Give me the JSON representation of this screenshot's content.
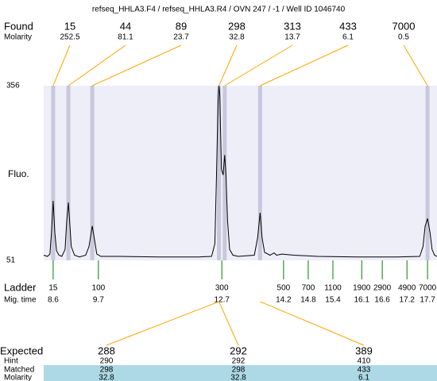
{
  "title": "refseq_HHLA3.F4 / refseq_HHLA3.R4 / OVN 247 / -1 / Well ID 1046740",
  "found": {
    "label": "Found",
    "molarity_label": "Molarity",
    "sizes": [
      15,
      44,
      89,
      298,
      313,
      433,
      7000
    ],
    "molarities": [
      252.5,
      81.1,
      23.7,
      32.8,
      13.7,
      6.1,
      0.5
    ],
    "times": [
      8.6,
      8.97,
      9.55,
      12.63,
      12.77,
      13.63,
      17.7
    ],
    "color": "#ffa500"
  },
  "chart_data": {
    "type": "line",
    "y_label": "Fluo.",
    "ylim": [
      51,
      356
    ],
    "yticks": [
      51,
      356
    ],
    "xlim": [
      8.37,
      17.93
    ],
    "x": [
      8.37,
      8.46,
      8.52,
      8.56,
      8.6,
      8.64,
      8.68,
      8.74,
      8.81,
      8.89,
      8.93,
      8.97,
      9.0,
      9.04,
      9.12,
      9.24,
      9.39,
      9.47,
      9.55,
      9.61,
      9.66,
      9.76,
      10.2,
      11.17,
      12.14,
      12.45,
      12.53,
      12.57,
      12.61,
      12.63,
      12.65,
      12.69,
      12.73,
      12.77,
      12.8,
      12.84,
      12.89,
      12.97,
      13.1,
      13.49,
      13.57,
      13.63,
      13.68,
      13.74,
      13.87,
      13.97,
      14.03,
      14.16,
      14.45,
      15.03,
      16.0,
      16.97,
      17.51,
      17.59,
      17.64,
      17.7,
      17.76,
      17.81,
      17.87,
      17.93
    ],
    "values": [
      60,
      58,
      62,
      100,
      155,
      100,
      68,
      60,
      58,
      70,
      120,
      152,
      120,
      75,
      60,
      57,
      60,
      75,
      111,
      85,
      62,
      58,
      58,
      57,
      57,
      58,
      80,
      200,
      330,
      356,
      340,
      210,
      200,
      235,
      200,
      120,
      70,
      60,
      58,
      60,
      90,
      134,
      90,
      65,
      60,
      64,
      60,
      62,
      60,
      58,
      57,
      57,
      58,
      75,
      110,
      124,
      100,
      70,
      60,
      58
    ],
    "color": "#000000",
    "background": "#eeeef8",
    "band_color": "#c8c8dc"
  },
  "ladder": {
    "label": "Ladder",
    "time_label": "Mig. time",
    "sizes": [
      15,
      100,
      300,
      500,
      700,
      1100,
      1900,
      2900,
      4900,
      7000
    ],
    "times": [
      8.6,
      9.7,
      12.7,
      14.2,
      14.8,
      15.4,
      16.1,
      16.6,
      17.2,
      17.7
    ],
    "color": "#008000"
  },
  "expected": {
    "row_labels": [
      "Expected",
      "Hint",
      "Matched",
      "Molarity"
    ],
    "columns": [
      [
        288,
        290,
        298,
        32.8
      ],
      [
        292,
        292,
        298,
        32.8
      ],
      [
        389,
        410,
        433,
        6.1
      ]
    ],
    "highlight": "#add8e6"
  }
}
